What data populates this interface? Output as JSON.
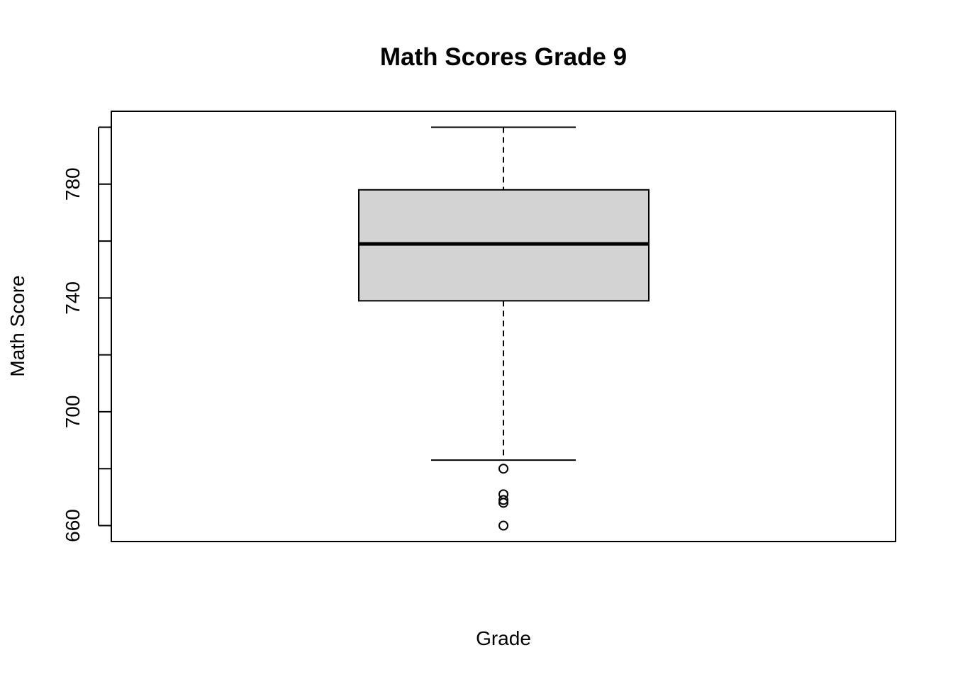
{
  "chart_data": {
    "type": "boxplot",
    "title": "Math Scores Grade 9",
    "xlabel": "Grade",
    "ylabel": "Math Score",
    "ylim": [
      654.4,
      805.6
    ],
    "yticks": [
      660,
      680,
      700,
      720,
      740,
      760,
      780,
      800
    ],
    "ytick_labels": [
      "660",
      "",
      "700",
      "",
      "740",
      "",
      "780",
      ""
    ],
    "box": {
      "whisker_low": 683,
      "q1": 739,
      "median": 759,
      "q3": 778,
      "whisker_high": 800,
      "outliers": [
        680,
        671,
        669,
        668,
        660
      ]
    },
    "box_fill": "#d3d3d3",
    "grid": false
  }
}
